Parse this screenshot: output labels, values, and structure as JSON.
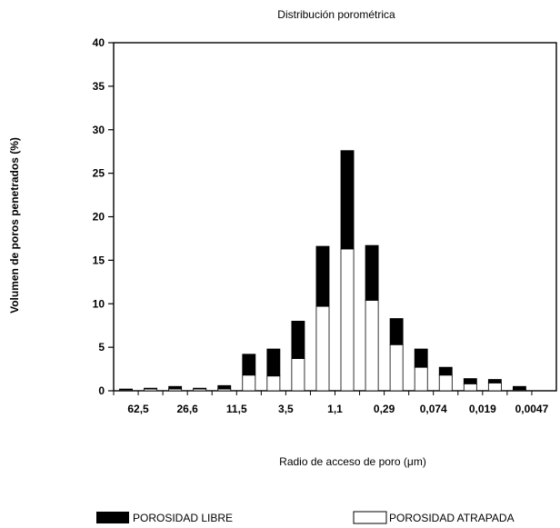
{
  "chart_data": {
    "type": "bar",
    "stacked": true,
    "title": "Distribución porométrica",
    "xlabel": "Radio de acceso de poro (μm)",
    "ylabel": "Volumen de poros penetrados (%)",
    "ylim": [
      0,
      40
    ],
    "yticks": [
      0,
      5,
      10,
      15,
      20,
      25,
      30,
      35,
      40
    ],
    "categories": [
      "62,5",
      "",
      "26,6",
      "",
      "11,5",
      "",
      "3,5",
      "",
      "1,1",
      "",
      "0,29",
      "",
      "0,074",
      "",
      "0,019",
      "",
      "0,0047",
      ""
    ],
    "series": [
      {
        "name": "POROSIDAD ATRAPADA",
        "color": "#ffffff",
        "values": [
          0.1,
          0.2,
          0.2,
          0.2,
          0.2,
          1.8,
          1.7,
          3.7,
          9.7,
          16.3,
          10.4,
          5.3,
          2.7,
          1.8,
          0.8,
          0.9,
          0.1,
          0
        ]
      },
      {
        "name": "POROSIDAD LIBRE",
        "color": "#000000",
        "values": [
          0.1,
          0.1,
          0.3,
          0.1,
          0.4,
          2.4,
          3.1,
          4.3,
          6.9,
          11.3,
          6.3,
          3.0,
          2.1,
          0.9,
          0.6,
          0.4,
          0.4,
          0
        ]
      }
    ],
    "grid": false,
    "legend": "bottom"
  }
}
